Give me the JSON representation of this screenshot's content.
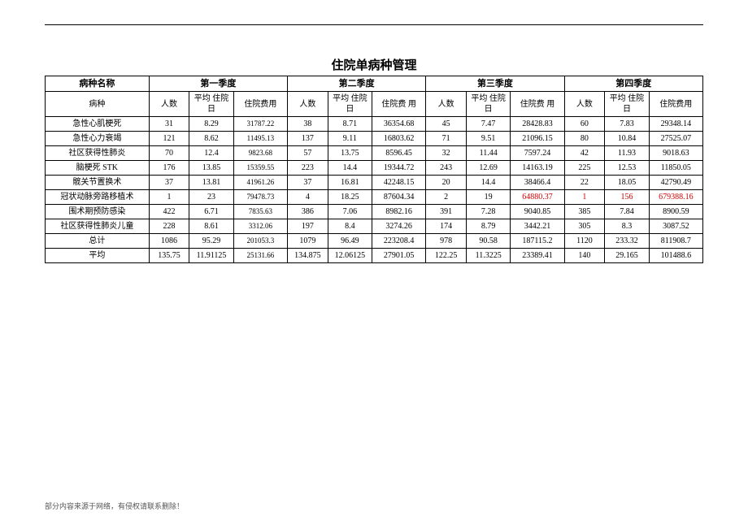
{
  "title": "住院单病种管理",
  "footer": "部分内容来源于网络，有侵权请联系删除！",
  "headers": {
    "name": "病种名称",
    "q1": "第一季度",
    "q2": "第二季度",
    "q3": "第三季度",
    "q4": "第四季度",
    "sub_name": "病种",
    "c_people": "人数",
    "c_days": "平均\n住院日",
    "c_fee": "住院费用",
    "c_fee2": "住院费\n用"
  },
  "colors": {
    "highlight": "#d00000",
    "text": "#000000",
    "border": "#000000",
    "background": "#ffffff"
  },
  "rows": [
    {
      "name": "急性心肌梗死",
      "q1": [
        "31",
        "8.29",
        "31787.22"
      ],
      "q2": [
        "38",
        "8.71",
        "36354.68"
      ],
      "q3": [
        "45",
        "7.47",
        "28428.83"
      ],
      "q4": [
        "60",
        "7.83",
        "29348.14"
      ]
    },
    {
      "name": "急性心力衰竭",
      "q1": [
        "121",
        "8.62",
        "11495.13"
      ],
      "q2": [
        "137",
        "9.11",
        "16803.62"
      ],
      "q3": [
        "71",
        "9.51",
        "21096.15"
      ],
      "q4": [
        "80",
        "10.84",
        "27525.07"
      ]
    },
    {
      "name": "社区获得性肺炎",
      "q1": [
        "70",
        "12.4",
        "9823.68"
      ],
      "q2": [
        "57",
        "13.75",
        "8596.45"
      ],
      "q3": [
        "32",
        "11.44",
        "7597.24"
      ],
      "q4": [
        "42",
        "11.93",
        "9018.63"
      ]
    },
    {
      "name": "脑梗死 STK",
      "q1": [
        "176",
        "13.85",
        "15359.55"
      ],
      "q2": [
        "223",
        "14.4",
        "19344.72"
      ],
      "q3": [
        "243",
        "12.69",
        "14163.19"
      ],
      "q4": [
        "225",
        "12.53",
        "11850.05"
      ]
    },
    {
      "name": "髋关节置换术",
      "q1": [
        "37",
        "13.81",
        "41961.26"
      ],
      "q2": [
        "37",
        "16.81",
        "42248.15"
      ],
      "q3": [
        "20",
        "14.4",
        "38466.4"
      ],
      "q4": [
        "22",
        "18.05",
        "42790.49"
      ]
    },
    {
      "name": "冠状动脉旁路移植术",
      "q1": [
        "1",
        "23",
        "79478.73"
      ],
      "q2": [
        "4",
        "18.25",
        "87604.34"
      ],
      "q3": [
        "2",
        "19",
        "64880.37"
      ],
      "q4": [
        "1",
        "156",
        "679388.16"
      ],
      "q3_red": [
        false,
        false,
        true
      ],
      "q4_red": [
        true,
        true,
        true
      ]
    },
    {
      "name": "围术期预防感染",
      "q1": [
        "422",
        "6.71",
        "7835.63"
      ],
      "q2": [
        "386",
        "7.06",
        "8982.16"
      ],
      "q3": [
        "391",
        "7.28",
        "9040.85"
      ],
      "q4": [
        "385",
        "7.84",
        "8900.59"
      ]
    },
    {
      "name": "社区获得性肺炎儿童",
      "q1": [
        "228",
        "8.61",
        "3312.06"
      ],
      "q2": [
        "197",
        "8.4",
        "3274.26"
      ],
      "q3": [
        "174",
        "8.79",
        "3442.21"
      ],
      "q4": [
        "305",
        "8.3",
        "3087.52"
      ]
    },
    {
      "name": "总计",
      "q1": [
        "1086",
        "95.29",
        "201053.3"
      ],
      "q2": [
        "1079",
        "96.49",
        "223208.4"
      ],
      "q3": [
        "978",
        "90.58",
        "187115.2"
      ],
      "q4": [
        "1120",
        "233.32",
        "811908.7"
      ]
    },
    {
      "name": "平均",
      "q1": [
        "135.75",
        "11.91125",
        "25131.66"
      ],
      "q2": [
        "134.875",
        "12.06125",
        "27901.05"
      ],
      "q3": [
        "122.25",
        "11.3225",
        "23389.41"
      ],
      "q4": [
        "140",
        "29.165",
        "101488.6"
      ]
    }
  ]
}
